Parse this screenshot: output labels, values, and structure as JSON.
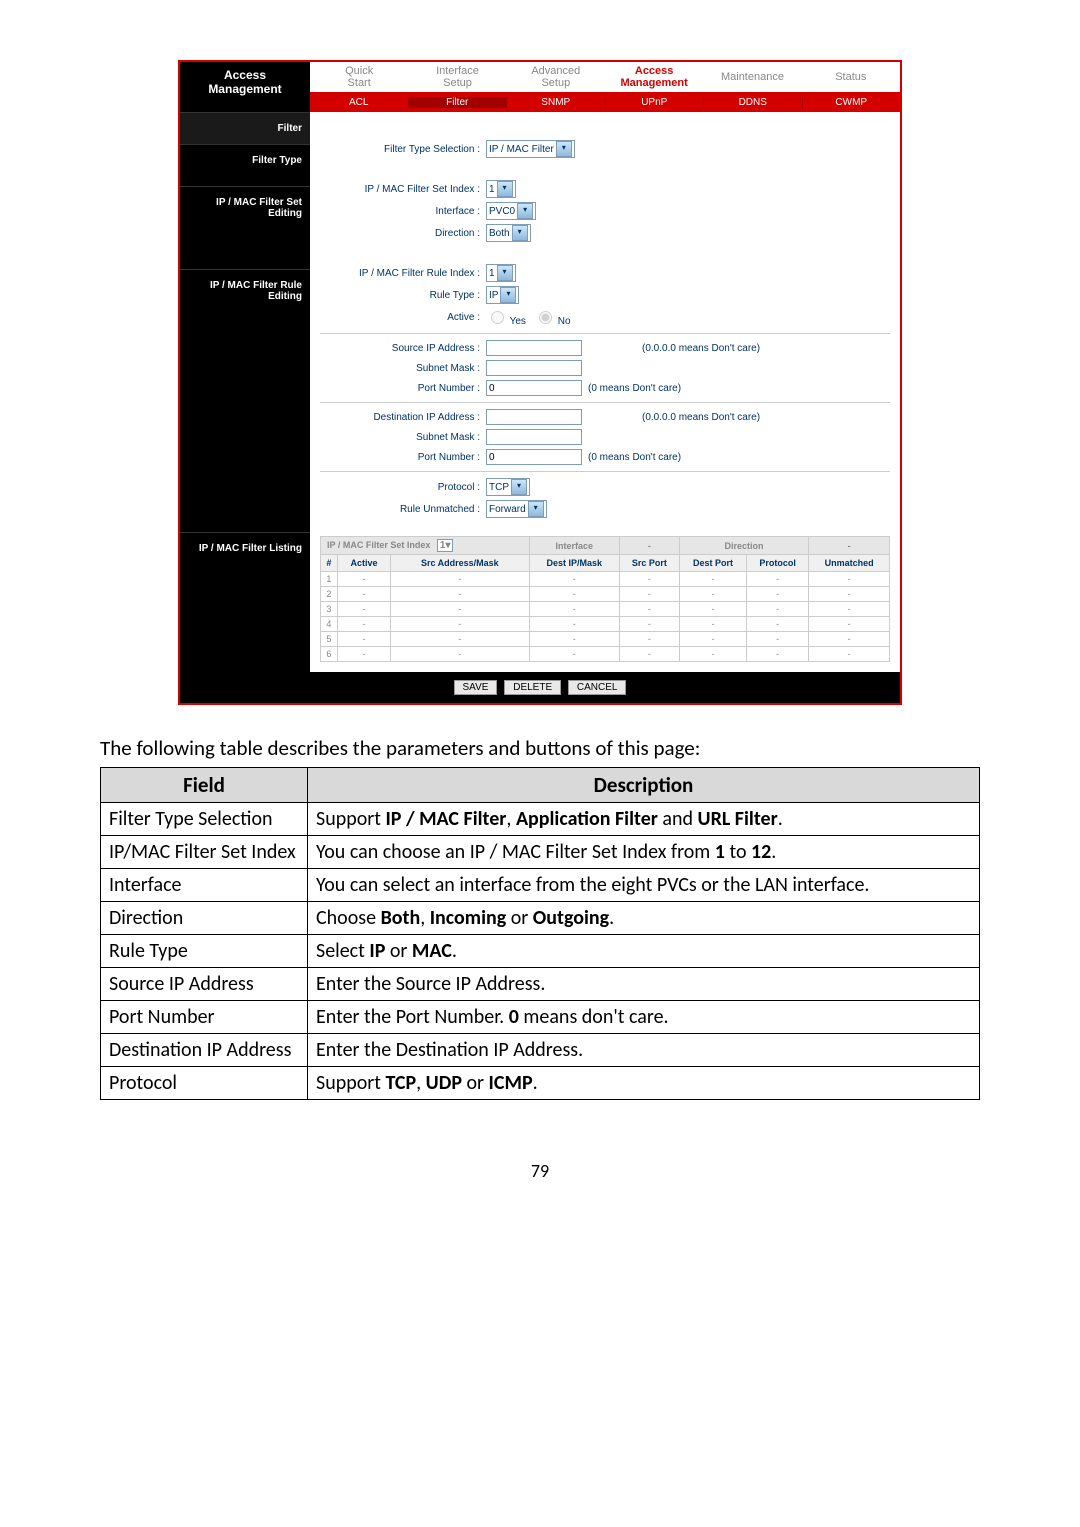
{
  "nav": {
    "title_line1": "Access",
    "title_line2": "Management",
    "tabs": [
      {
        "l1": "Quick",
        "l2": "Start"
      },
      {
        "l1": "Interface",
        "l2": "Setup"
      },
      {
        "l1": "Advanced",
        "l2": "Setup"
      },
      {
        "l1": "Access",
        "l2": "Management",
        "active": true
      },
      {
        "l1": "Maintenance",
        "l2": ""
      },
      {
        "l1": "Status",
        "l2": ""
      }
    ],
    "subtabs": [
      "ACL",
      "Filter",
      "SNMP",
      "UPnP",
      "DDNS",
      "CWMP"
    ],
    "active_subtab": 1
  },
  "sidebar": {
    "sections": [
      "Filter",
      "Filter Type",
      "IP / MAC Filter Set Editing",
      "IP / MAC Filter Rule Editing",
      "IP / MAC Filter Listing"
    ]
  },
  "form": {
    "filter_type_label": "Filter Type Selection :",
    "filter_type_value": "IP / MAC Filter",
    "set_index_label": "IP / MAC Filter Set Index :",
    "set_index_value": "1",
    "interface_label": "Interface :",
    "interface_value": "PVC0",
    "direction_label": "Direction :",
    "direction_value": "Both",
    "rule_index_label": "IP / MAC Filter Rule Index :",
    "rule_index_value": "1",
    "rule_type_label": "Rule Type :",
    "rule_type_value": "IP",
    "active_label": "Active :",
    "active_yes": "Yes",
    "active_no": "No",
    "src_ip_label": "Source IP Address :",
    "src_hint": "(0.0.0.0 means Don't care)",
    "subnet_label": "Subnet Mask :",
    "port_label": "Port Number :",
    "port_value": "0",
    "port_hint": "(0 means Don't care)",
    "dst_ip_label": "Destination IP Address :",
    "dst_hint": "(0.0.0.0 means Don't care)",
    "protocol_label": "Protocol :",
    "protocol_value": "TCP",
    "unmatched_label": "Rule Unmatched :",
    "unmatched_value": "Forward"
  },
  "listing": {
    "h_set_index": "IP / MAC Filter Set Index",
    "h_set_value": "1",
    "h_interface": "Interface",
    "h_interface_value": "-",
    "h_direction": "Direction",
    "h_direction_value": "-",
    "cols": [
      "#",
      "Active",
      "Src Address/Mask",
      "Dest IP/Mask",
      "Src Port",
      "Dest Port",
      "Protocol",
      "Unmatched"
    ],
    "rows": [
      [
        "1",
        "-",
        "-",
        "-",
        "-",
        "-",
        "-",
        "-"
      ],
      [
        "2",
        "-",
        "-",
        "-",
        "-",
        "-",
        "-",
        "-"
      ],
      [
        "3",
        "-",
        "-",
        "-",
        "-",
        "-",
        "-",
        "-"
      ],
      [
        "4",
        "-",
        "-",
        "-",
        "-",
        "-",
        "-",
        "-"
      ],
      [
        "5",
        "-",
        "-",
        "-",
        "-",
        "-",
        "-",
        "-"
      ],
      [
        "6",
        "-",
        "-",
        "-",
        "-",
        "-",
        "-",
        "-"
      ]
    ]
  },
  "buttons": {
    "save": "SAVE",
    "delete": "DELETE",
    "cancel": "CANCEL"
  },
  "caption": "The following table describes the parameters and buttons of this page:",
  "table": {
    "head_field": "Field",
    "head_desc": "Description",
    "rows": [
      {
        "f": "Filter Type Selection",
        "d": "Support <b>IP / MAC Filter</b>, <b>Application Filter</b> and <b>URL Filter</b>."
      },
      {
        "f": "IP/MAC Filter Set Index",
        "d": "You can choose an IP / MAC Filter Set Index from <b>1</b> to <b>12</b>."
      },
      {
        "f": "Interface",
        "d": "You can select an interface from the eight PVCs or the LAN interface."
      },
      {
        "f": "Direction",
        "d": "Choose <b>Both</b>, <b>Incoming</b> or <b>Outgoing</b>."
      },
      {
        "f": "Rule Type",
        "d": "Select <b>IP</b> or <b>MAC</b>."
      },
      {
        "f": "Source IP Address",
        "d": "Enter the Source IP Address."
      },
      {
        "f": "Port Number",
        "d": "Enter the Port Number. <b>0</b> means don't care."
      },
      {
        "f": "Destination IP Address",
        "d": "Enter the Destination IP Address."
      },
      {
        "f": "Protocol",
        "d": "Support <b>TCP</b>, <b>UDP</b> or <b>ICMP</b>."
      }
    ]
  },
  "page_number": "79"
}
